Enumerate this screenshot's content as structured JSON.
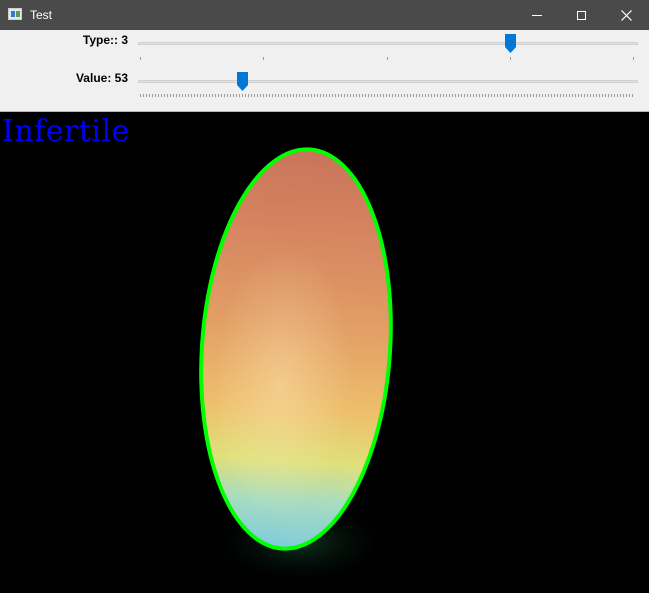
{
  "window": {
    "title": "Test",
    "icon": "app-window-icon",
    "controls": [
      "minimize-icon",
      "maximize-icon",
      "close-icon"
    ]
  },
  "trackbars": [
    {
      "label": "Type:: 3",
      "value": 3,
      "max": 4
    },
    {
      "label": "Value: 53",
      "value": 53,
      "max": 255
    }
  ],
  "image": {
    "result_text": "Infertile",
    "result_color": "#0000ff",
    "contour_color": "#00ff00"
  }
}
